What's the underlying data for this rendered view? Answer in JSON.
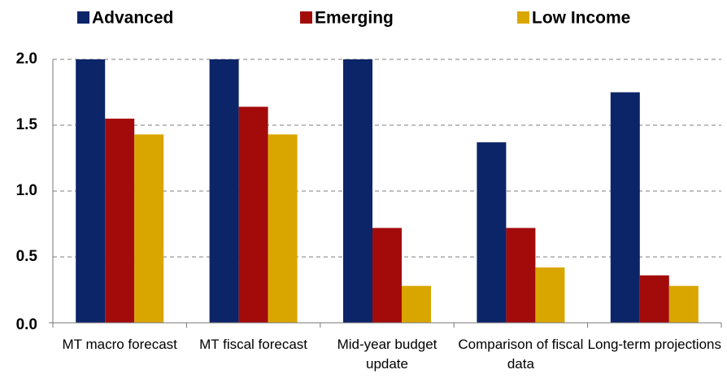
{
  "chart_data": {
    "type": "bar",
    "categories": [
      "MT macro forecast",
      "MT fiscal forecast",
      "Mid-year budget update",
      "Comparison of fiscal data",
      "Long-term projections"
    ],
    "series": [
      {
        "name": "Advanced",
        "color": "#0c2468",
        "values": [
          2.0,
          2.0,
          2.0,
          1.37,
          1.75
        ]
      },
      {
        "name": "Emerging",
        "color": "#a30b0b",
        "values": [
          1.55,
          1.64,
          0.72,
          0.72,
          0.36
        ]
      },
      {
        "name": "Low Income",
        "color": "#d9a600",
        "values": [
          1.43,
          1.43,
          0.28,
          0.42,
          0.28
        ]
      }
    ],
    "ylim": [
      0,
      2
    ],
    "yticks": [
      {
        "value": 0,
        "label": "0.0"
      },
      0.5,
      {
        "value": 1,
        "label": "1.0"
      },
      1.5,
      {
        "value": 2,
        "label": "2.0"
      }
    ],
    "grid": true,
    "legend": "top"
  }
}
